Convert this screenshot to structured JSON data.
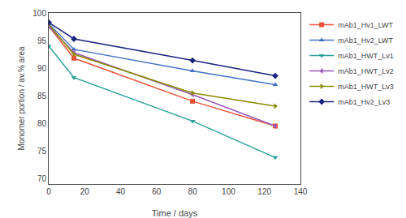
{
  "chart_data": {
    "type": "line",
    "xlabel": "Time / days",
    "ylabel": "Monomer portion / av.% area",
    "x": [
      0,
      14,
      80,
      126
    ],
    "xlim": [
      0,
      140
    ],
    "ylim": [
      69,
      100
    ],
    "xticks": [
      0,
      20,
      40,
      60,
      80,
      100,
      120,
      140
    ],
    "yticks": [
      70,
      75,
      80,
      85,
      90,
      95,
      100
    ],
    "grid": false,
    "legend": "upper right",
    "series": [
      {
        "name": "mAb1_Hv1_LWT",
        "color": "#e8523a",
        "marker": "square",
        "line_style": "solid",
        "values": [
          97.6,
          91.8,
          84.0,
          79.5
        ]
      },
      {
        "name": "mAb1_Hv2_LWT",
        "color": "#4472c4",
        "marker": "triangle-up",
        "line_style": "solid",
        "values": [
          98.1,
          93.4,
          89.5,
          87.0
        ]
      },
      {
        "name": "mAb1_HWT_Lv1",
        "color": "#2aa198",
        "marker": "triangle-down",
        "line_style": "solid",
        "values": [
          94.0,
          88.3,
          80.4,
          73.8
        ]
      },
      {
        "name": "mAb1_HWT_Lv2",
        "color": "#9b59b6",
        "marker": "triangle-left",
        "line_style": "solid",
        "values": [
          97.6,
          92.8,
          85.2,
          79.5
        ]
      },
      {
        "name": "mAb1_HWT_Lv3",
        "color": "#8b8b00",
        "marker": "triangle-right",
        "line_style": "solid",
        "values": [
          97.9,
          92.5,
          85.5,
          83.1
        ]
      },
      {
        "name": "mAb1_Hv2_Lv3",
        "color": "#1a237e",
        "marker": "diamond",
        "line_style": "solid",
        "values": [
          98.3,
          95.3,
          91.4,
          88.6
        ]
      }
    ]
  }
}
